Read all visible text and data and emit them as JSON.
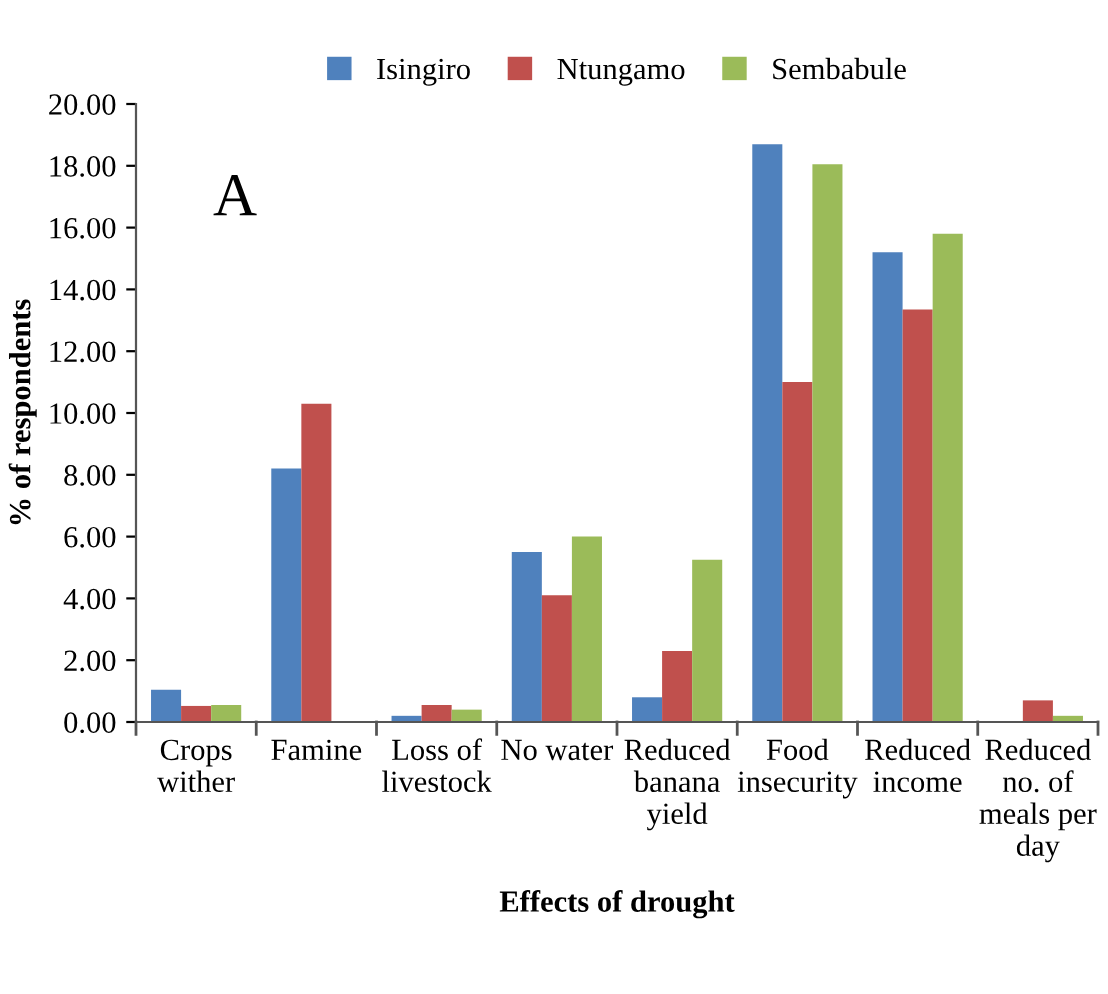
{
  "chart_data": {
    "type": "bar",
    "categories": [
      "Crops\nwither",
      "Famine",
      "Loss of\nlivestock",
      "No water",
      "Reduced\nbanana\nyield",
      "Food\ninsecurity",
      "Reduced\nincome",
      "Reduced\nno. of\nmeals per\nday"
    ],
    "series": [
      {
        "name": "Isingiro",
        "color": "#4f81bd",
        "values": [
          1.04,
          8.2,
          0.2,
          5.5,
          0.8,
          18.7,
          15.2,
          0
        ]
      },
      {
        "name": "Ntungamo",
        "color": "#c0504d",
        "values": [
          0.52,
          10.3,
          0.55,
          4.1,
          2.3,
          11.0,
          13.35,
          0.7
        ]
      },
      {
        "name": "Sembabule",
        "color": "#9bbb59",
        "values": [
          0.55,
          0,
          0.4,
          6.0,
          5.25,
          18.05,
          15.8,
          0.2
        ]
      }
    ],
    "xlabel": "Effects of drought",
    "ylabel": "% of respondents",
    "annotations": [
      "A"
    ],
    "ylim": [
      0,
      20
    ],
    "yticks": [
      {
        "value": 0,
        "label": "0.00"
      },
      {
        "value": 2,
        "label": "2.00"
      },
      {
        "value": 4,
        "label": "4.00"
      },
      {
        "value": 6,
        "label": "6.00"
      },
      {
        "value": 8,
        "label": "8.00"
      },
      {
        "value": 10,
        "label": "10.00"
      },
      {
        "value": 12,
        "label": "12.00"
      },
      {
        "value": 14,
        "label": "14.00"
      },
      {
        "value": 16,
        "label": "16.00"
      },
      {
        "value": 18,
        "label": "18.00"
      },
      {
        "value": 20,
        "label": "20.00"
      }
    ],
    "grid": false,
    "legend": "top"
  }
}
